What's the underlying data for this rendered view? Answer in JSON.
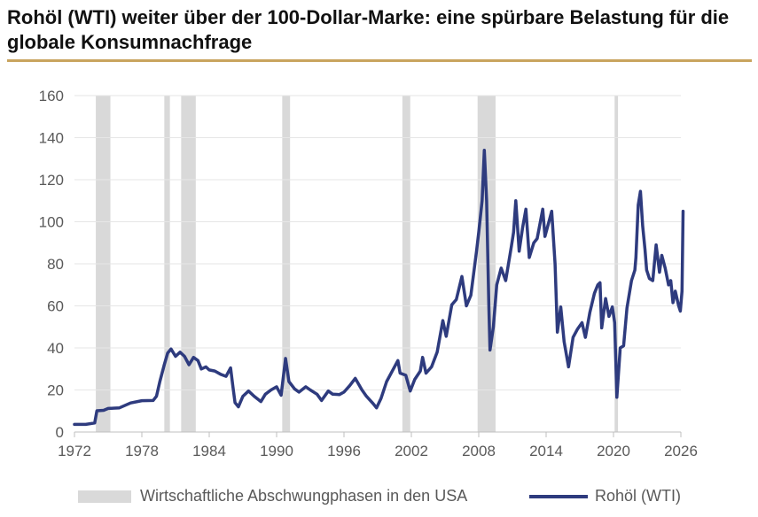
{
  "header": {
    "title": "Rohöl (WTI) weiter über der 100-Dollar-Marke: eine spürbare Belastung für die globale Konsumnachfrage",
    "rule_color": "#c9a45e"
  },
  "legend": {
    "recession_label": "Wirtschaftliche Abschwungphasen in den USA",
    "series_label": "Rohöl (WTI)"
  },
  "colors": {
    "line": "#2e3b7e",
    "recession": "#d9d9d9",
    "grid": "#e6e6e6",
    "axis": "#bfbfbf",
    "text": "#595959"
  },
  "chart_data": {
    "type": "line",
    "title": "Rohöl (WTI) weiter über der 100-Dollar-Marke: eine spürbare Belastung für die globale Konsumnachfrage",
    "xlabel": "",
    "ylabel": "",
    "xlim": [
      1972,
      2026
    ],
    "ylim": [
      0,
      160
    ],
    "x_ticks": [
      1972,
      1978,
      1984,
      1990,
      1996,
      2002,
      2008,
      2014,
      2020,
      2026
    ],
    "y_ticks": [
      0,
      20,
      40,
      60,
      80,
      100,
      120,
      140,
      160
    ],
    "grid": "horizontal",
    "legend_position": "bottom",
    "recessions": [
      [
        1973.9,
        1975.2
      ],
      [
        1980.0,
        1980.5
      ],
      [
        1981.5,
        1982.8
      ],
      [
        1990.5,
        1991.2
      ],
      [
        2001.2,
        2001.9
      ],
      [
        2007.9,
        2009.5
      ],
      [
        2020.1,
        2020.4
      ]
    ],
    "series": [
      {
        "name": "Rohöl (WTI)",
        "points": [
          [
            1972.0,
            3.6
          ],
          [
            1973.0,
            3.6
          ],
          [
            1973.8,
            4.3
          ],
          [
            1974.0,
            10.1
          ],
          [
            1974.6,
            10.3
          ],
          [
            1975.0,
            11.2
          ],
          [
            1976.0,
            11.5
          ],
          [
            1977.0,
            13.8
          ],
          [
            1978.0,
            14.9
          ],
          [
            1979.0,
            15.0
          ],
          [
            1979.3,
            17.0
          ],
          [
            1979.6,
            24.0
          ],
          [
            1980.0,
            32.0
          ],
          [
            1980.3,
            37.5
          ],
          [
            1980.6,
            39.5
          ],
          [
            1981.0,
            36.0
          ],
          [
            1981.4,
            38.0
          ],
          [
            1981.8,
            36.0
          ],
          [
            1982.2,
            32.0
          ],
          [
            1982.6,
            35.5
          ],
          [
            1983.0,
            34.0
          ],
          [
            1983.3,
            30.0
          ],
          [
            1983.7,
            31.0
          ],
          [
            1984.0,
            29.5
          ],
          [
            1984.5,
            29.0
          ],
          [
            1985.0,
            27.5
          ],
          [
            1985.5,
            26.5
          ],
          [
            1985.9,
            30.5
          ],
          [
            1986.1,
            22.0
          ],
          [
            1986.3,
            14.0
          ],
          [
            1986.6,
            12.0
          ],
          [
            1987.0,
            17.0
          ],
          [
            1987.5,
            19.5
          ],
          [
            1988.0,
            17.0
          ],
          [
            1988.6,
            14.5
          ],
          [
            1989.0,
            18.0
          ],
          [
            1989.5,
            20.0
          ],
          [
            1990.0,
            21.5
          ],
          [
            1990.4,
            17.5
          ],
          [
            1990.8,
            35.0
          ],
          [
            1991.1,
            24.0
          ],
          [
            1991.6,
            20.5
          ],
          [
            1992.0,
            19.0
          ],
          [
            1992.6,
            21.5
          ],
          [
            1993.0,
            20.0
          ],
          [
            1993.6,
            18.0
          ],
          [
            1994.0,
            15.0
          ],
          [
            1994.6,
            19.5
          ],
          [
            1995.0,
            18.0
          ],
          [
            1995.6,
            17.8
          ],
          [
            1996.0,
            19.0
          ],
          [
            1996.5,
            22.0
          ],
          [
            1997.0,
            25.5
          ],
          [
            1997.6,
            20.0
          ],
          [
            1998.0,
            17.0
          ],
          [
            1998.6,
            13.5
          ],
          [
            1998.9,
            11.5
          ],
          [
            1999.3,
            16.0
          ],
          [
            1999.8,
            24.0
          ],
          [
            2000.3,
            29.0
          ],
          [
            2000.8,
            34.0
          ],
          [
            2001.0,
            28.0
          ],
          [
            2001.5,
            27.0
          ],
          [
            2001.9,
            19.5
          ],
          [
            2002.3,
            25.0
          ],
          [
            2002.8,
            29.0
          ],
          [
            2003.0,
            35.5
          ],
          [
            2003.3,
            28.0
          ],
          [
            2003.8,
            31.0
          ],
          [
            2004.3,
            38.0
          ],
          [
            2004.8,
            53.0
          ],
          [
            2005.1,
            45.5
          ],
          [
            2005.6,
            60.5
          ],
          [
            2006.0,
            63.0
          ],
          [
            2006.5,
            74.0
          ],
          [
            2006.9,
            60.0
          ],
          [
            2007.3,
            65.0
          ],
          [
            2007.8,
            86.0
          ],
          [
            2008.0,
            95.0
          ],
          [
            2008.3,
            110.0
          ],
          [
            2008.5,
            134.0
          ],
          [
            2008.7,
            110.0
          ],
          [
            2008.9,
            60.0
          ],
          [
            2009.0,
            39.0
          ],
          [
            2009.3,
            50.0
          ],
          [
            2009.6,
            70.0
          ],
          [
            2010.0,
            78.0
          ],
          [
            2010.4,
            72.0
          ],
          [
            2010.9,
            88.0
          ],
          [
            2011.1,
            95.0
          ],
          [
            2011.3,
            110.0
          ],
          [
            2011.6,
            86.0
          ],
          [
            2011.9,
            97.0
          ],
          [
            2012.2,
            106.0
          ],
          [
            2012.5,
            83.0
          ],
          [
            2012.9,
            90.0
          ],
          [
            2013.2,
            92.0
          ],
          [
            2013.7,
            106.0
          ],
          [
            2013.9,
            93.0
          ],
          [
            2014.3,
            101.0
          ],
          [
            2014.5,
            105.0
          ],
          [
            2014.8,
            80.0
          ],
          [
            2015.0,
            47.5
          ],
          [
            2015.3,
            59.5
          ],
          [
            2015.6,
            43.0
          ],
          [
            2016.0,
            31.0
          ],
          [
            2016.4,
            45.0
          ],
          [
            2016.8,
            49.0
          ],
          [
            2017.2,
            52.0
          ],
          [
            2017.5,
            45.0
          ],
          [
            2017.9,
            57.0
          ],
          [
            2018.3,
            66.0
          ],
          [
            2018.6,
            70.0
          ],
          [
            2018.8,
            71.0
          ],
          [
            2018.95,
            49.5
          ],
          [
            2019.3,
            63.5
          ],
          [
            2019.6,
            55.0
          ],
          [
            2019.9,
            59.5
          ],
          [
            2020.1,
            52.0
          ],
          [
            2020.3,
            16.5
          ],
          [
            2020.6,
            40.0
          ],
          [
            2020.9,
            41.0
          ],
          [
            2021.2,
            59.0
          ],
          [
            2021.6,
            72.0
          ],
          [
            2021.9,
            77.0
          ],
          [
            2022.0,
            83.0
          ],
          [
            2022.2,
            108.0
          ],
          [
            2022.4,
            114.5
          ],
          [
            2022.6,
            98.0
          ],
          [
            2022.8,
            87.0
          ],
          [
            2022.95,
            77.0
          ],
          [
            2023.2,
            73.0
          ],
          [
            2023.5,
            72.0
          ],
          [
            2023.8,
            89.0
          ],
          [
            2024.1,
            76.0
          ],
          [
            2024.3,
            84.0
          ],
          [
            2024.6,
            78.0
          ],
          [
            2024.9,
            70.0
          ],
          [
            2025.1,
            72.0
          ],
          [
            2025.3,
            61.5
          ],
          [
            2025.5,
            67.0
          ],
          [
            2025.8,
            60.0
          ],
          [
            2025.95,
            57.5
          ],
          [
            2026.1,
            67.0
          ],
          [
            2026.2,
            105.0
          ]
        ]
      }
    ]
  }
}
